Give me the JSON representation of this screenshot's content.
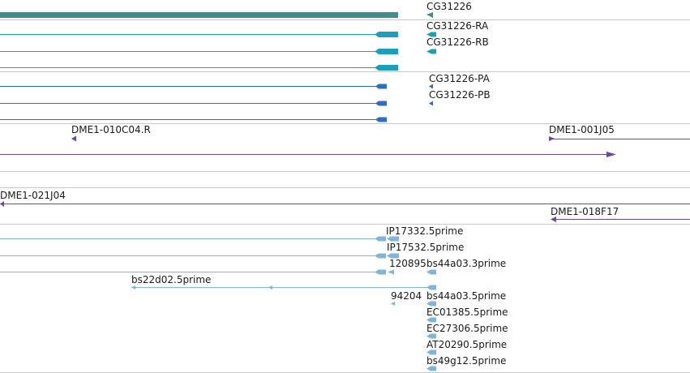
{
  "colors": {
    "gene": "#3d8f8f",
    "transcript": "#1aa0b8",
    "protein": "#2b6fc4",
    "clone": "#6a4a9c",
    "est": "#7fb5d8",
    "separator": "#c8c8c8"
  },
  "tracks": {
    "gene": {
      "labels": [
        "CG31226"
      ]
    },
    "transcripts": {
      "labels": [
        "CG31226-RA",
        "CG31226-RB"
      ]
    },
    "proteins": {
      "labels": [
        "CG31226-PA",
        "CG31226-PB"
      ]
    },
    "clones": {
      "labels": [
        "DME1-010C04.R",
        "DME1-001J05",
        "DME1-021J04",
        "DME1-018F17"
      ]
    },
    "ests": {
      "labels": [
        "IP17332.5prime",
        "IP17532.5prime",
        "120895",
        "bs44a03.3prime",
        "bs22d02.5prime",
        "94204",
        "bs44a03.5prime",
        "EC01385.5prime",
        "EC27306.5prime",
        "AT20290.5prime",
        "bs49g12.5prime"
      ]
    }
  }
}
